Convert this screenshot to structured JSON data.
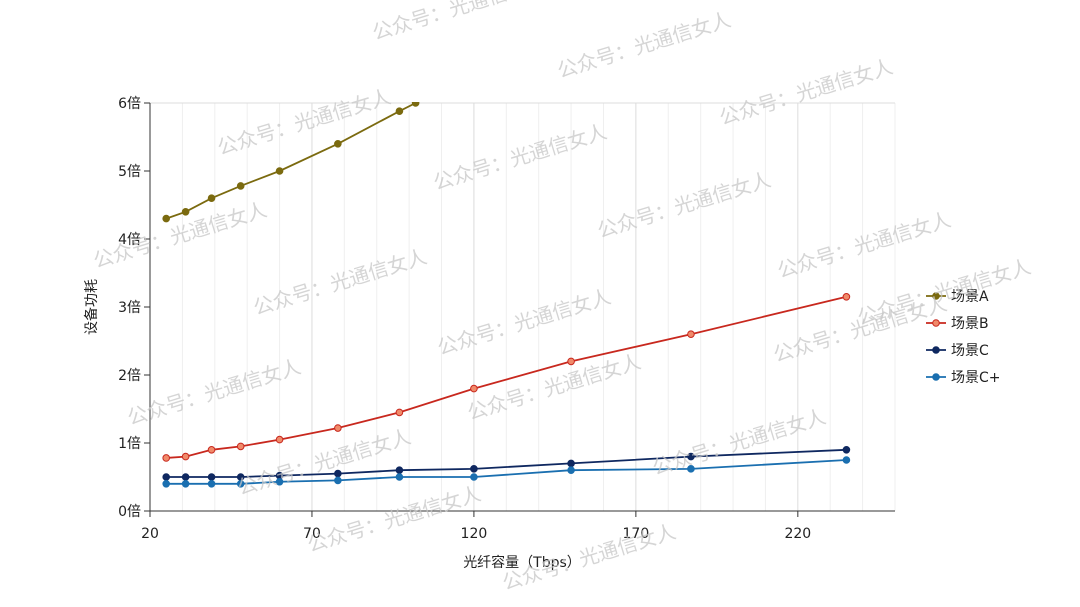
{
  "chart_data": {
    "type": "line",
    "xlabel": "光纤容量（Tbps）",
    "ylabel": "设备功耗",
    "xlim": [
      20,
      250
    ],
    "ylim": [
      0,
      6
    ],
    "xticks": [
      20,
      70,
      120,
      170,
      220
    ],
    "yticks": [
      {
        "value": 0,
        "label": "0倍"
      },
      {
        "value": 1,
        "label": "1倍"
      },
      {
        "value": 2,
        "label": "2倍"
      },
      {
        "value": 3,
        "label": "3倍"
      },
      {
        "value": 4,
        "label": "4倍"
      },
      {
        "value": 5,
        "label": "5倍"
      },
      {
        "value": 6,
        "label": "6倍"
      }
    ],
    "grid": true,
    "legend_position": "right",
    "series": [
      {
        "name": "场景A",
        "color": "#7b6a0f",
        "x": [
          25,
          31,
          39,
          48,
          60,
          78,
          97,
          102
        ],
        "y": [
          4.3,
          4.4,
          4.6,
          4.78,
          5.0,
          5.4,
          5.88,
          6.0
        ]
      },
      {
        "name": "场景B",
        "color": "#c8281e",
        "x": [
          25,
          31,
          39,
          48,
          60,
          78,
          97,
          120,
          150,
          187,
          235
        ],
        "y": [
          0.78,
          0.8,
          0.9,
          0.95,
          1.05,
          1.22,
          1.45,
          1.8,
          2.2,
          2.6,
          3.15
        ]
      },
      {
        "name": "场景C",
        "color": "#0f2860",
        "x": [
          25,
          31,
          39,
          48,
          60,
          78,
          97,
          120,
          150,
          187,
          235
        ],
        "y": [
          0.5,
          0.5,
          0.5,
          0.5,
          0.52,
          0.55,
          0.6,
          0.62,
          0.7,
          0.8,
          0.9
        ]
      },
      {
        "name": "场景C+",
        "color": "#1a6fb0",
        "x": [
          25,
          31,
          39,
          48,
          60,
          78,
          97,
          120,
          150,
          187,
          235
        ],
        "y": [
          0.4,
          0.4,
          0.4,
          0.4,
          0.43,
          0.45,
          0.5,
          0.5,
          0.6,
          0.62,
          0.75
        ]
      }
    ]
  },
  "watermark": "公众号：光通信女人"
}
